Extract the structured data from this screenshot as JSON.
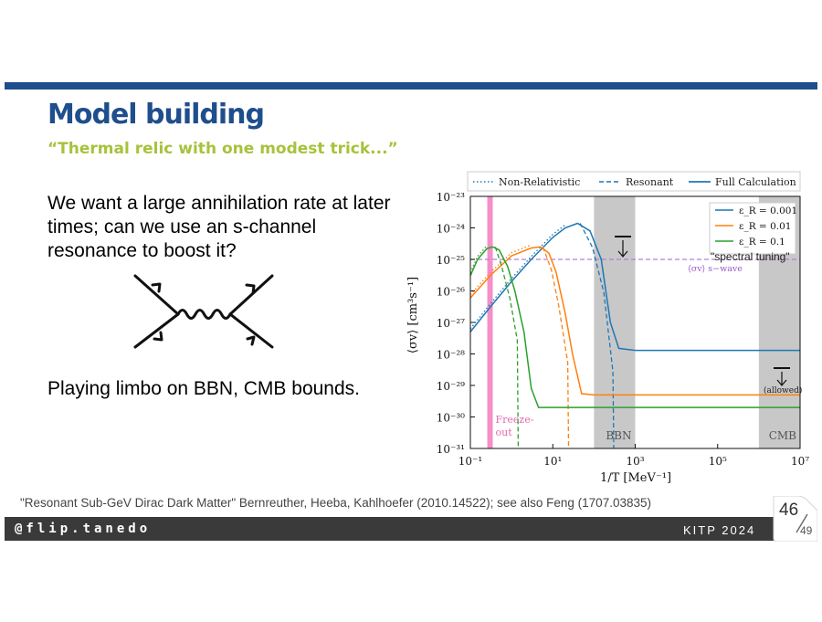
{
  "slide": {
    "title": "Model building",
    "subtitle": "“Thermal relic with one modest trick...”",
    "body_text": "We want a large annihilation rate at later times; can we use an s-channel resonance to boost it?",
    "body_text2": "Playing limbo on BBN, CMB bounds.",
    "citation": "\"Resonant Sub-GeV Dirac Dark Matter\" Bernreuther, Heeba, Kahlhoefer (2010.14522); see also Feng (1707.03835)",
    "footer_handle": "@flip.tanedo",
    "footer_conference": "KITP 2024",
    "slide_number": "46",
    "total_slides": "49"
  },
  "colors": {
    "title": "#1f4e8c",
    "subtitle": "#a7c23c",
    "bar": "#1e4e8c",
    "footer": "#3a3a3a",
    "blue": "#1f77b4",
    "orange": "#ff7f0e",
    "green": "#2ca02c",
    "purple": "#b27fdc",
    "freezeout": "#f48fc8",
    "band": "#c8c8c8"
  },
  "chart_data": {
    "type": "line",
    "xlabel": "1/T [MeV⁻¹]",
    "ylabel": "⟨σv⟩ [cm³s⁻¹]",
    "x_scale": "log",
    "y_scale": "log",
    "xlim": [
      0.1,
      10000000
    ],
    "ylim": [
      1e-31,
      1e-23
    ],
    "x_ticks": [
      "10⁻¹",
      "10¹",
      "10³",
      "10⁵",
      "10⁷"
    ],
    "y_ticks": [
      "10⁻²³",
      "10⁻²⁴",
      "10⁻²⁵",
      "10⁻²⁶",
      "10⁻²⁷",
      "10⁻²⁸",
      "10⁻²⁹",
      "10⁻³⁰",
      "10⁻³¹"
    ],
    "top_legend": [
      "Non-Relativistic",
      "Resonant",
      "Full Calculation"
    ],
    "series": [
      {
        "name": "ε_R = 0.001",
        "color": "#1f77b4",
        "x": [
          0.1,
          0.3,
          1,
          3,
          10,
          20,
          40,
          80,
          150,
          250,
          400,
          1000,
          10000,
          100000,
          10000000
        ],
        "y": [
          5e-28,
          3e-27,
          2e-26,
          1e-25,
          5e-25,
          1e-24,
          1.4e-24,
          8e-25,
          1e-25,
          1e-27,
          1.5e-28,
          1.3e-28,
          1.3e-28,
          1.3e-28,
          1.3e-28
        ]
      },
      {
        "name": "ε_R = 0.01",
        "color": "#ff7f0e",
        "x": [
          0.1,
          0.3,
          1,
          3,
          5,
          8,
          12,
          20,
          30,
          50,
          100,
          1000,
          100000,
          10000000
        ],
        "y": [
          6e-27,
          3e-26,
          1.3e-25,
          2.3e-25,
          2.5e-25,
          1.6e-25,
          4e-26,
          2e-27,
          1e-28,
          5.5e-30,
          5e-30,
          5e-30,
          5e-30,
          5e-30
        ]
      },
      {
        "name": "ε_R = 0.1",
        "color": "#2ca02c",
        "x": [
          0.1,
          0.15,
          0.25,
          0.35,
          0.5,
          0.8,
          1.2,
          2,
          3,
          4.5,
          10,
          1000,
          10000000
        ],
        "y": [
          3e-26,
          1e-25,
          2.2e-25,
          2.5e-25,
          2e-25,
          6e-26,
          1e-26,
          5e-28,
          8e-30,
          2e-30,
          2e-30,
          2e-30,
          2e-30
        ]
      }
    ],
    "s_wave_label": "⟨σv⟩ s−wave",
    "s_wave_value": 1e-25,
    "bands": [
      {
        "label": "BBN",
        "from": 100,
        "to": 1000
      },
      {
        "label": "CMB",
        "from": 1000000,
        "to": 10000000
      }
    ],
    "freezeout": {
      "label1": "Freeze-",
      "label2": "out",
      "at": 0.3
    },
    "annotations": {
      "spectral": "\"spectral tuning\"",
      "allowed": "(allowed)"
    }
  }
}
